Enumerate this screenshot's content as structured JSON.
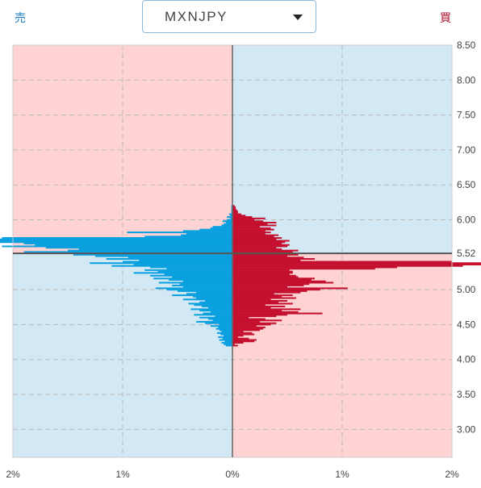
{
  "header": {
    "sell_label": "売",
    "buy_label": "買",
    "pair": "MXNJPY"
  },
  "colors": {
    "sell_bar": "#0aa0e0",
    "buy_bar": "#c4102e",
    "sell_bg": "#ffd3d3",
    "buy_bg": "#d3e8f5"
  },
  "chart_data": {
    "type": "bar",
    "orientation": "horizontal",
    "current_price": 5.52,
    "ylim": [
      2.6,
      8.5
    ],
    "xlim": [
      -2,
      2
    ],
    "y_ticks": [
      "8.50",
      "8.00",
      "7.50",
      "7.00",
      "6.50",
      "6.00",
      "5.52",
      "5.00",
      "4.50",
      "4.00",
      "3.50",
      "3.00"
    ],
    "x_ticks": [
      "2%",
      "1%",
      "0%",
      "1%",
      "2%"
    ],
    "grid": true,
    "price_step": 0.02,
    "price_start": 4.2,
    "sell_values": [
      0.06,
      0.08,
      0.1,
      0.07,
      0.12,
      0.09,
      0.13,
      0.08,
      0.11,
      0.14,
      0.1,
      0.12,
      0.15,
      0.13,
      0.2,
      0.12,
      0.25,
      0.33,
      0.18,
      0.22,
      0.3,
      0.16,
      0.35,
      0.27,
      0.2,
      0.3,
      0.38,
      0.22,
      0.28,
      0.35,
      0.4,
      0.3,
      0.25,
      0.45,
      0.33,
      0.36,
      0.55,
      0.42,
      0.33,
      0.5,
      0.6,
      0.7,
      0.45,
      0.55,
      0.48,
      0.67,
      0.45,
      0.58,
      0.72,
      0.55,
      0.75,
      0.62,
      0.9,
      0.68,
      0.8,
      0.6,
      0.75,
      1.1,
      0.9,
      1.3,
      1.0,
      0.85,
      1.15,
      0.95,
      1.25,
      1.45,
      1.0,
      1.9,
      1.5,
      1.4,
      1.7,
      2.1,
      1.8,
      1.9,
      2.3,
      2.6,
      2.7,
      2.1,
      0.8,
      0.47,
      0.42,
      0.96,
      0.45,
      0.3,
      0.2,
      0.18,
      0.1,
      0.08,
      0.06,
      0.09,
      0.05,
      0.02,
      0.05,
      0.02,
      0.03,
      0.01,
      0.01,
      0.01,
      0.01,
      0.01,
      0.01
    ],
    "buy_values": [
      0.05,
      0.02,
      0.1,
      0.2,
      0.22,
      0.15,
      0.05,
      0.1,
      0.2,
      0.18,
      0.1,
      0.25,
      0.28,
      0.3,
      0.22,
      0.35,
      0.4,
      0.25,
      0.45,
      0.3,
      0.15,
      0.4,
      0.5,
      0.82,
      0.6,
      0.45,
      0.62,
      0.35,
      0.48,
      0.3,
      0.55,
      0.42,
      0.5,
      0.35,
      0.58,
      0.45,
      0.55,
      0.38,
      0.62,
      0.68,
      0.8,
      1.05,
      0.5,
      0.65,
      0.7,
      0.92,
      0.85,
      0.72,
      0.75,
      0.6,
      0.58,
      0.52,
      0.55,
      0.55,
      0.52,
      1.3,
      1.5,
      2.1,
      2.6,
      2.4,
      2.0,
      0.62,
      0.75,
      0.65,
      0.5,
      0.6,
      0.58,
      0.55,
      0.6,
      0.45,
      0.4,
      0.5,
      0.52,
      0.45,
      0.48,
      0.52,
      0.4,
      0.45,
      0.38,
      0.42,
      0.3,
      0.35,
      0.3,
      0.38,
      0.35,
      0.25,
      0.4,
      0.32,
      0.4,
      0.28,
      0.2,
      0.3,
      0.18,
      0.12,
      0.08,
      0.05,
      0.05,
      0.04,
      0.03,
      0.03,
      0.02
    ]
  }
}
